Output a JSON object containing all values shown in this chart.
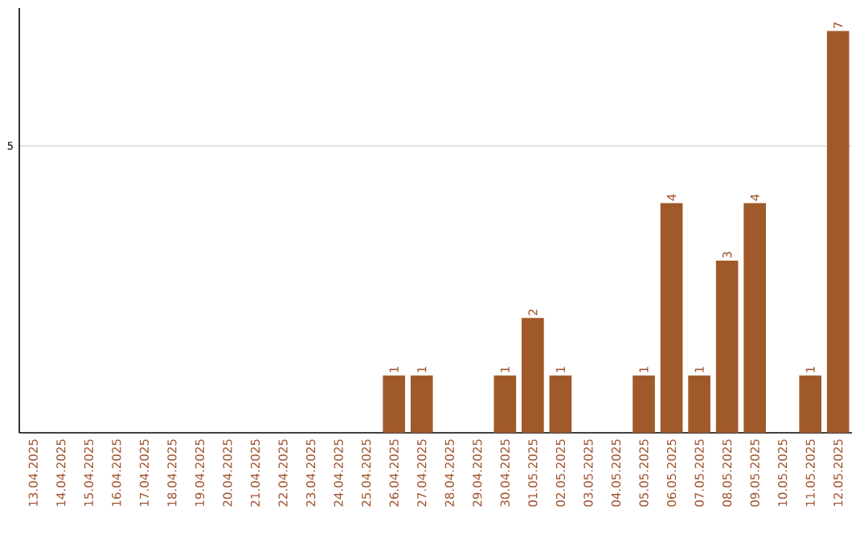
{
  "chart_data": {
    "type": "bar",
    "data_labels": true,
    "categories": [
      "13.04.2025",
      "14.04.2025",
      "15.04.2025",
      "16.04.2025",
      "17.04.2025",
      "18.04.2025",
      "19.04.2025",
      "20.04.2025",
      "21.04.2025",
      "22.04.2025",
      "23.04.2025",
      "24.04.2025",
      "25.04.2025",
      "26.04.2025",
      "27.04.2025",
      "28.04.2025",
      "29.04.2025",
      "30.04.2025",
      "01.05.2025",
      "02.05.2025",
      "03.05.2025",
      "04.05.2025",
      "05.05.2025",
      "06.05.2025",
      "07.05.2025",
      "08.05.2025",
      "09.05.2025",
      "10.05.2025",
      "11.05.2025",
      "12.05.2025"
    ],
    "values": [
      null,
      null,
      null,
      null,
      null,
      null,
      null,
      null,
      null,
      null,
      null,
      null,
      null,
      1,
      1,
      null,
      null,
      1,
      2,
      1,
      null,
      null,
      1,
      4,
      1,
      3,
      4,
      null,
      1,
      7
    ],
    "color": "#a0592a",
    "ylim": [
      0,
      7.4
    ],
    "yticks": [
      5
    ],
    "grid": "y"
  }
}
